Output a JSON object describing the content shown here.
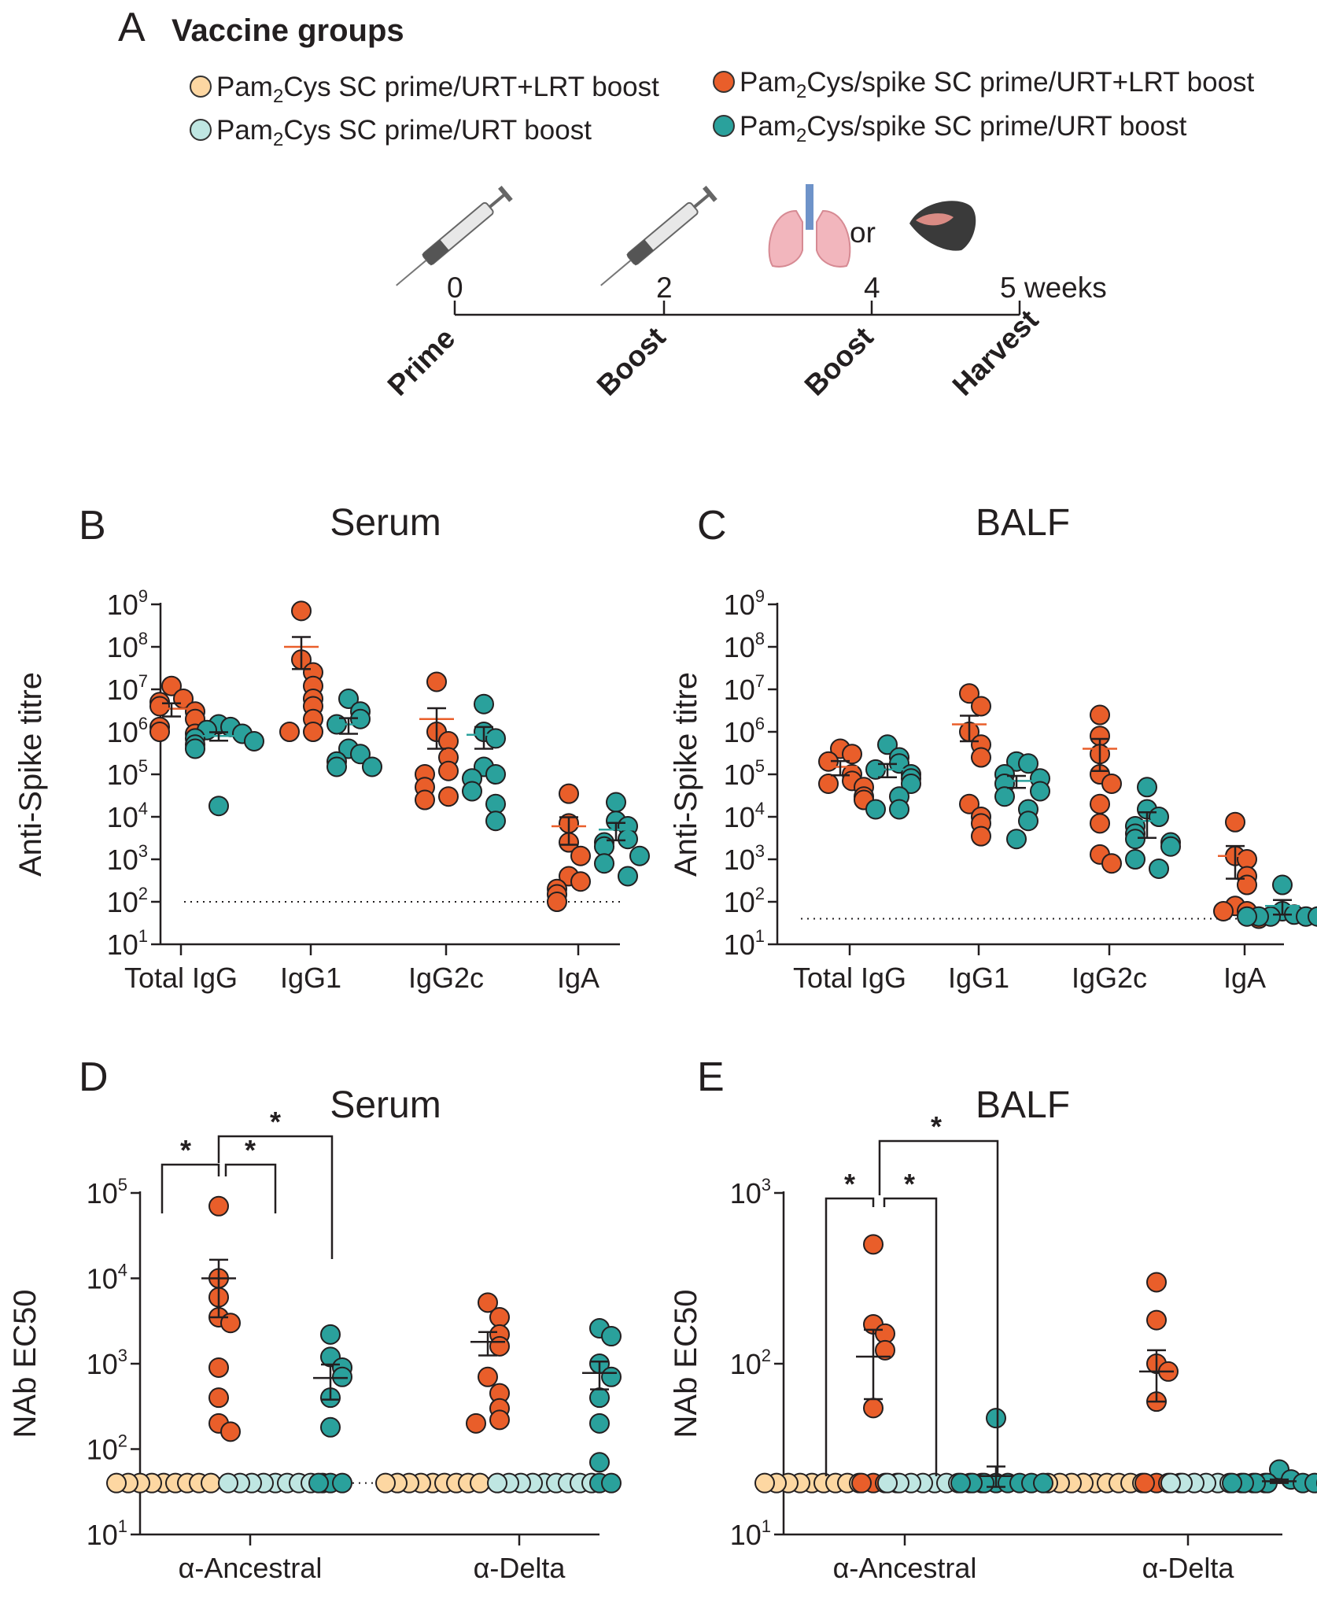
{
  "panel_a": {
    "letter": "A",
    "title": "Vaccine groups",
    "legend": [
      {
        "pre": "Pam",
        "sub": "2",
        "post": "Cys SC prime/URT+LRT boost",
        "color": "#fdd7a2",
        "stroke": "#333333"
      },
      {
        "pre": "Pam",
        "sub": "2",
        "post": "Cys SC prime/URT boost",
        "color": "#bfe6e2",
        "stroke": "#333333"
      },
      {
        "pre": "Pam",
        "sub": "2",
        "post": "Cys/spike SC prime/URT+LRT boost",
        "color": "#e95e2a",
        "stroke": "#333333"
      },
      {
        "pre": "Pam",
        "sub": "2",
        "post": "Cys/spike SC prime/URT boost",
        "color": "#2aa19c",
        "stroke": "#333333"
      }
    ],
    "timeline": {
      "ticks": [
        "0",
        "2",
        "4",
        "5 weeks"
      ],
      "or_text": "or",
      "events": [
        "Prime",
        "Boost",
        "Boost",
        "Harvest"
      ],
      "icons": [
        "syringe-icon",
        "syringe-icon",
        "lungs-icon",
        "mouse-head-icon"
      ]
    }
  },
  "chart_data": [
    {
      "panel": "B",
      "type": "scatter",
      "title": "Serum",
      "ylabel": "Anti-Spike titre",
      "yscale": "log10",
      "ylim_exp": [
        1,
        9
      ],
      "ytick_exponents": [
        1,
        2,
        3,
        4,
        5,
        6,
        7,
        8,
        9
      ],
      "categories": [
        "Total IgG",
        "IgG1",
        "IgG2c",
        "IgA"
      ],
      "threshold": 100,
      "series": [
        {
          "name": "Pam2Cys/spike SC prime/URT+LRT boost",
          "color": "#e95e2a",
          "values": [
            [
              12000000,
              6000000,
              5000000,
              4000000,
              3000000,
              2000000,
              1300000,
              1000000,
              900000
            ],
            [
              700000000,
              50000000,
              25000000,
              12000000,
              6000000,
              4000000,
              2000000,
              1000000,
              1000000
            ],
            [
              15000000,
              1000000,
              600000,
              250000,
              120000,
              100000,
              50000,
              30000,
              25000
            ],
            [
              35000,
              7000,
              2500,
              1200,
              400,
              300,
              200,
              150,
              100
            ]
          ],
          "mean": [
            3500000,
            100000000,
            2000000,
            6000
          ],
          "sem": [
            1200000,
            70000000,
            1600000,
            3800
          ]
        },
        {
          "name": "Pam2Cys/spike SC prime/URT boost",
          "color": "#2aa19c",
          "values": [
            [
              1500000,
              1300000,
              1100000,
              900000,
              700000,
              600000,
              500000,
              400000,
              18000
            ],
            [
              6000000,
              3000000,
              2000000,
              1500000,
              400000,
              300000,
              200000,
              150000,
              150000
            ],
            [
              4500000,
              1000000,
              700000,
              150000,
              100000,
              80000,
              40000,
              20000,
              8000
            ],
            [
              22000,
              8000,
              6000,
              3000,
              2500,
              2000,
              1200,
              800,
              400
            ]
          ],
          "mean": [
            800000,
            1500000,
            850000,
            5000
          ],
          "sem": [
            180000,
            600000,
            450000,
            2200
          ]
        }
      ]
    },
    {
      "panel": "C",
      "type": "scatter",
      "title": "BALF",
      "ylabel": "Anti-Spike titre",
      "yscale": "log10",
      "ylim_exp": [
        1,
        9
      ],
      "ytick_exponents": [
        1,
        2,
        3,
        4,
        5,
        6,
        7,
        8,
        9
      ],
      "categories": [
        "Total IgG",
        "IgG1",
        "IgG2c",
        "IgA"
      ],
      "threshold": 40,
      "series": [
        {
          "name": "Pam2Cys/spike SC prime/URT+LRT boost",
          "color": "#e95e2a",
          "values": [
            [
              400000,
              300000,
              200000,
              100000,
              70000,
              60000,
              50000,
              30000,
              25000
            ],
            [
              8000000,
              4000000,
              1000000,
              500000,
              250000,
              20000,
              10000,
              7000,
              3500
            ],
            [
              2500000,
              800000,
              300000,
              100000,
              60000,
              20000,
              7000,
              1300,
              800
            ],
            [
              7500,
              1200,
              1000,
              400,
              250,
              80,
              60,
              60,
              40
            ]
          ],
          "mean": [
            150000,
            1500000,
            400000,
            1200
          ],
          "sem": [
            55000,
            900000,
            280000,
            850
          ]
        },
        {
          "name": "Pam2Cys/spike SC prime/URT boost",
          "color": "#2aa19c",
          "values": [
            [
              500000,
              250000,
              180000,
              130000,
              100000,
              80000,
              60000,
              30000,
              15000,
              15000
            ],
            [
              200000,
              180000,
              100000,
              80000,
              60000,
              40000,
              30000,
              15000,
              8000,
              3000
            ],
            [
              50000,
              15000,
              10000,
              6000,
              4000,
              3000,
              2500,
              2000,
              1000,
              600
            ],
            [
              250,
              60,
              50,
              45,
              45,
              45,
              45,
              45,
              45
            ]
          ],
          "mean": [
            130000,
            70000,
            8000,
            80
          ],
          "sem": [
            45000,
            22000,
            4800,
            30
          ]
        }
      ]
    },
    {
      "panel": "D",
      "type": "scatter",
      "title": "Serum",
      "ylabel": "NAb EC50",
      "yscale": "log10",
      "ylim_exp": [
        1,
        5
      ],
      "ytick_exponents": [
        1,
        2,
        3,
        4,
        5
      ],
      "categories": [
        "α-Ancestral",
        "α-Delta"
      ],
      "threshold": 40,
      "significance_label": "*",
      "series": [
        {
          "name": "Pam2Cys SC prime/URT+LRT boost",
          "color": "#fdd7a2",
          "values": [
            [
              40,
              40,
              40,
              40,
              40,
              40,
              40,
              40,
              40
            ],
            [
              40,
              40,
              40,
              40,
              40,
              40,
              40,
              40,
              40
            ]
          ],
          "mean": [
            null,
            null
          ],
          "sem": [
            null,
            null
          ]
        },
        {
          "name": "Pam2Cys/spike SC prime/URT+LRT boost",
          "color": "#e95e2a",
          "values": [
            [
              70000,
              10000,
              6000,
              3500,
              3000,
              900,
              400,
              200,
              160
            ],
            [
              5200,
              3500,
              2200,
              1600,
              700,
              450,
              300,
              220,
              200
            ]
          ],
          "mean": [
            10000,
            1800
          ],
          "sem": [
            6500,
            550
          ]
        },
        {
          "name": "Pam2Cys SC prime/URT boost",
          "color": "#bfe6e2",
          "values": [
            [
              40,
              40,
              40,
              40,
              40,
              40,
              40,
              40,
              40
            ],
            [
              40,
              40,
              40,
              40,
              40,
              40,
              40,
              40,
              40
            ]
          ],
          "mean": [
            null,
            null
          ],
          "sem": [
            null,
            null
          ]
        },
        {
          "name": "Pam2Cys/spike SC prime/URT boost",
          "color": "#2aa19c",
          "values": [
            [
              2200,
              1200,
              900,
              700,
              400,
              180,
              40,
              40,
              40
            ],
            [
              2600,
              2100,
              1000,
              700,
              400,
              200,
              70,
              40,
              40
            ]
          ],
          "mean": [
            680,
            780
          ],
          "sem": [
            300,
            280
          ]
        }
      ]
    },
    {
      "panel": "E",
      "type": "scatter",
      "title": "BALF",
      "ylabel": "NAb EC50",
      "yscale": "log10",
      "ylim_exp": [
        1,
        3
      ],
      "ytick_exponents": [
        1,
        2,
        3
      ],
      "categories": [
        "α-Ancestral",
        "α-Delta"
      ],
      "threshold": 20,
      "significance_label": "*",
      "series": [
        {
          "name": "Pam2Cys SC prime/URT+LRT boost",
          "color": "#fdd7a2",
          "values": [
            [
              20,
              20,
              20,
              20,
              20,
              20,
              20,
              20,
              20
            ],
            [
              20,
              20,
              20,
              20,
              20,
              20,
              20,
              20,
              20
            ]
          ],
          "mean": [
            null,
            null
          ],
          "sem": [
            null,
            null
          ]
        },
        {
          "name": "Pam2Cys/spike SC prime/URT+LRT boost",
          "color": "#e95e2a",
          "values": [
            [
              500,
              170,
              150,
              120,
              55,
              20,
              20,
              20,
              20
            ],
            [
              300,
              180,
              100,
              90,
              60,
              20,
              20,
              20,
              20
            ]
          ],
          "mean": [
            110,
            90
          ],
          "sem": [
            48,
            30
          ]
        },
        {
          "name": "Pam2Cys SC prime/URT boost",
          "color": "#bfe6e2",
          "values": [
            [
              20,
              20,
              20,
              20,
              20,
              20,
              20,
              20,
              20
            ],
            [
              20,
              20,
              20,
              20,
              20,
              20,
              20,
              20,
              20
            ]
          ],
          "mean": [
            null,
            null
          ],
          "sem": [
            null,
            null
          ]
        },
        {
          "name": "Pam2Cys/spike SC prime/URT boost",
          "color": "#2aa19c",
          "values": [
            [
              48,
              20,
              20,
              20,
              20,
              20,
              20,
              20,
              20
            ],
            [
              24,
              21,
              20,
              20,
              20,
              20,
              20,
              20,
              20,
              20
            ]
          ],
          "mean": [
            22,
            20.5
          ],
          "sem": [
            3,
            0.5
          ]
        }
      ]
    }
  ]
}
